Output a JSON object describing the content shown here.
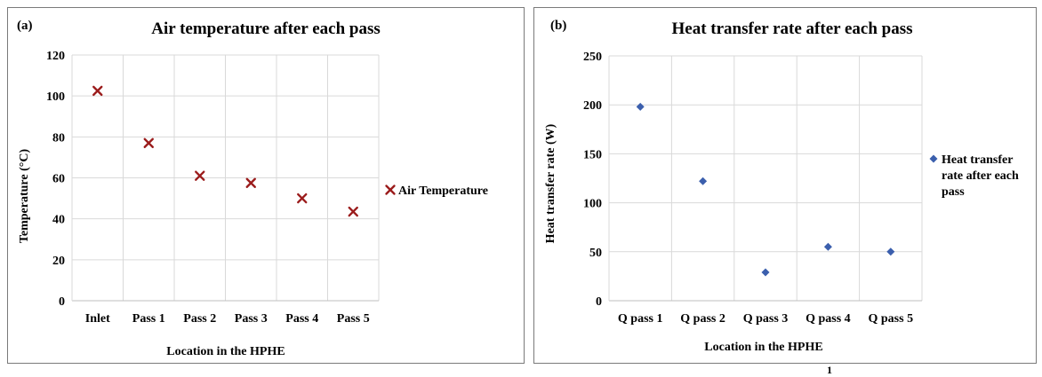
{
  "chart_data": [
    {
      "type": "scatter",
      "panel_label": "(a)",
      "title": "Air temperature after each pass",
      "xlabel": "Location in the HPHE",
      "ylabel": "Temperature (°C)",
      "categories": [
        "Inlet",
        "Pass 1",
        "Pass 2",
        "Pass 3",
        "Pass 4",
        "Pass 5"
      ],
      "series": [
        {
          "name": "Air Temperature",
          "values": [
            102.5,
            77,
            61,
            57.5,
            50,
            43.5
          ],
          "color": "#9b1c1c",
          "marker": "x"
        }
      ],
      "ylim": [
        0,
        120
      ],
      "yticks": [
        "0",
        "20",
        "40",
        "60",
        "80",
        "100",
        "120"
      ],
      "grid": true,
      "legend_position": "right"
    },
    {
      "type": "scatter",
      "panel_label": "(b)",
      "title": "Heat transfer rate after each pass",
      "xlabel": "Location in the HPHE",
      "ylabel": "Heat transfer rate (W)",
      "categories": [
        "Q pass 1",
        "Q pass 2",
        "Q pass 3",
        "Q pass 4",
        "Q pass 5"
      ],
      "series": [
        {
          "name": "Heat transfer rate after each pass",
          "legend_lines": [
            "Heat transfer",
            "rate after each",
            "pass"
          ],
          "values": [
            198,
            122,
            29,
            55,
            50
          ],
          "color": "#3b5fad",
          "marker": "diamond"
        }
      ],
      "ylim": [
        0,
        250
      ],
      "yticks": [
        "0",
        "50",
        "100",
        "150",
        "200",
        "250"
      ],
      "grid": true,
      "legend_position": "right"
    }
  ],
  "page_number": "1"
}
